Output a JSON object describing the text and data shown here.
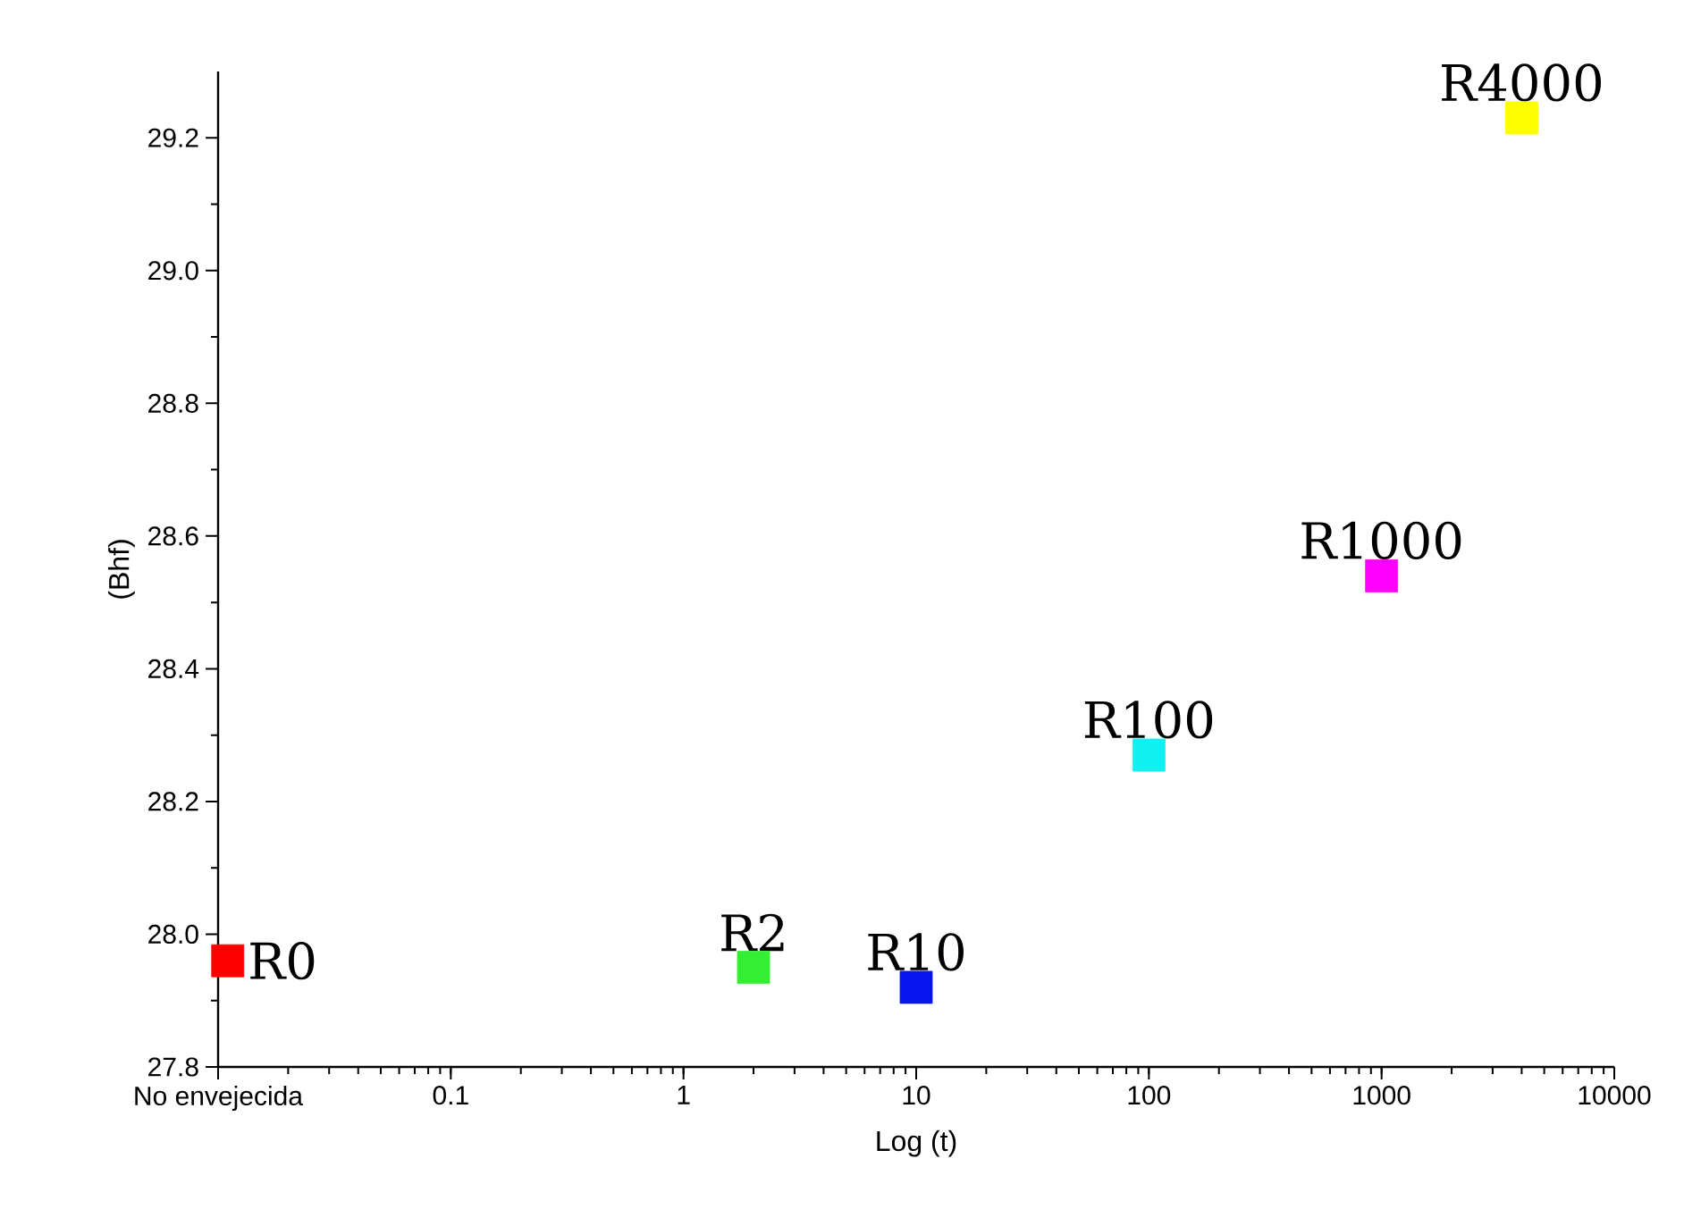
{
  "chart_data": {
    "type": "scatter",
    "xlabel": "Log (t)",
    "ylabel": "(Bhf)",
    "log": "x",
    "marker": "square",
    "x": [
      0.011,
      2,
      10,
      100,
      1000,
      4000
    ],
    "values": [
      27.96,
      27.95,
      27.92,
      28.27,
      28.54,
      29.23
    ],
    "colors": [
      "#ff0000",
      "#33ee33",
      "#0a14ee",
      "#11f0f0",
      "#ff00ff",
      "#ffff00"
    ],
    "xlim": [
      0.01,
      10000
    ],
    "ylim": [
      27.8,
      29.3
    ],
    "xticks": [
      {
        "value": 0.01,
        "label": "No envejecida"
      },
      0.1,
      1,
      10,
      100,
      1000,
      10000
    ],
    "yticks": [
      27.8,
      {
        "value": 28.0,
        "label": "28.0"
      },
      28.2,
      28.4,
      28.6,
      28.8,
      {
        "value": 29.0,
        "label": "29.0"
      },
      29.2
    ],
    "annotations": [
      {
        "text": "R0",
        "x": 0.011,
        "y": 27.96
      },
      {
        "text": "R2",
        "x": 2,
        "y": 27.95
      },
      {
        "text": "R10",
        "x": 10,
        "y": 27.92
      },
      {
        "text": "R100",
        "x": 100,
        "y": 28.27
      },
      {
        "text": "R1000",
        "x": 1000,
        "y": 28.54
      },
      {
        "text": "R4000",
        "x": 4000,
        "y": 29.23
      }
    ]
  }
}
